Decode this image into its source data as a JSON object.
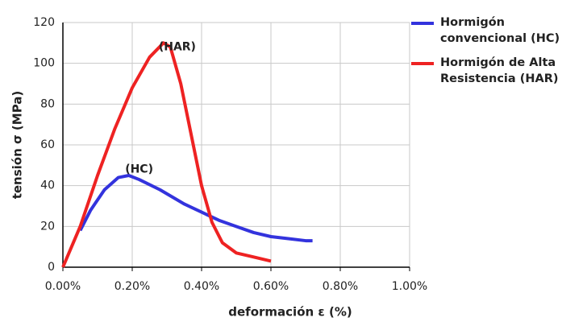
{
  "chart_data": {
    "type": "line",
    "y_label": "tensión σ (MPa)",
    "x_label": "deformación ε (%)",
    "annotations": [
      "(HAR)",
      "(HC)"
    ],
    "xlim": [
      0,
      1.0
    ],
    "ylim": [
      0,
      120
    ],
    "xticks": [
      {
        "value": 0,
        "label": "0.00%"
      },
      {
        "value": 0.2,
        "label": "0.20%"
      },
      {
        "value": 0.4,
        "label": "0.40%"
      },
      {
        "value": 0.6,
        "label": "0.60%"
      },
      {
        "value": 0.8,
        "label": "0.80%"
      },
      {
        "value": 1.0,
        "label": "1.00%"
      }
    ],
    "yticks": [
      0,
      20,
      40,
      60,
      80,
      100,
      120
    ],
    "grid": true,
    "legend": "right",
    "series": [
      {
        "name": "Hormigón convencional (HC)",
        "color": "#3333dd",
        "x": [
          0.05,
          0.08,
          0.12,
          0.16,
          0.19,
          0.22,
          0.28,
          0.35,
          0.4,
          0.45,
          0.5,
          0.55,
          0.6,
          0.65,
          0.7,
          0.72
        ],
        "y": [
          18,
          28,
          38,
          44,
          45,
          43,
          38,
          31,
          27,
          23,
          20,
          17,
          15,
          14,
          13,
          13
        ]
      },
      {
        "name": "Hormigón de Alta Resistencia (HAR)",
        "color": "#ee2222",
        "x": [
          0,
          0.05,
          0.1,
          0.15,
          0.2,
          0.25,
          0.29,
          0.31,
          0.34,
          0.37,
          0.4,
          0.43,
          0.46,
          0.5,
          0.55,
          0.6
        ],
        "y": [
          0,
          20,
          45,
          68,
          88,
          103,
          110,
          108,
          90,
          65,
          40,
          22,
          12,
          7,
          5,
          3
        ]
      }
    ]
  }
}
